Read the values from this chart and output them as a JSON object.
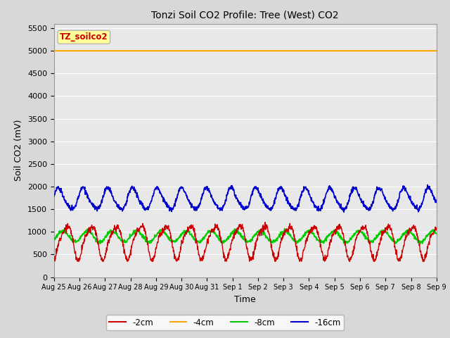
{
  "title": "Tonzi Soil CO2 Profile: Tree (West) CO2",
  "xlabel": "Time",
  "ylabel": "Soil CO2 (mV)",
  "ylim": [
    0,
    5600
  ],
  "background_color": "#e8e8e8",
  "grid_color": "#ffffff",
  "label_box_text": "TZ_soilco2",
  "label_box_bg": "#ffff99",
  "label_box_edge": "#aaaaaa",
  "label_box_text_color": "#cc0000",
  "x_tick_labels": [
    "Aug 25",
    "Aug 26",
    "Aug 27",
    "Aug 28",
    "Aug 29",
    "Aug 30",
    "Aug 31",
    "Sep 1",
    "Sep 2",
    "Sep 3",
    "Sep 4",
    "Sep 5",
    "Sep 6",
    "Sep 7",
    "Sep 8",
    "Sep 9"
  ],
  "lines": {
    "-2cm": {
      "color": "#cc0000",
      "linewidth": 1.0
    },
    "-4cm": {
      "color": "#ffa500",
      "linewidth": 1.5
    },
    "-8cm": {
      "color": "#00cc00",
      "linewidth": 1.2
    },
    "-16cm": {
      "color": "#0000cc",
      "linewidth": 1.2
    }
  },
  "legend_labels": [
    "-2cm",
    "-4cm",
    "-8cm",
    "-16cm"
  ],
  "legend_colors": [
    "#cc0000",
    "#ffa500",
    "#00cc00",
    "#0000cc"
  ],
  "fig_facecolor": "#d8d8d8",
  "yticks": [
    0,
    500,
    1000,
    1500,
    2000,
    2500,
    3000,
    3500,
    4000,
    4500,
    5000,
    5500
  ]
}
